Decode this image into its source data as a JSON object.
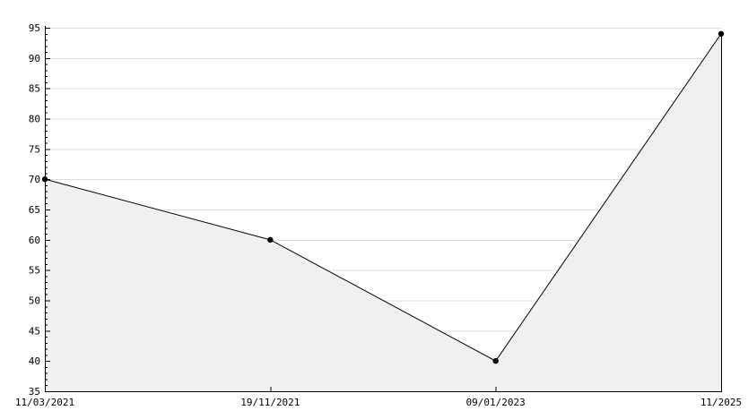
{
  "chart_data": {
    "type": "area",
    "x": [
      "11/03/2021",
      "19/11/2021",
      "09/01/2023",
      "11/2025"
    ],
    "series": [
      {
        "name": "value",
        "values": [
          70,
          60,
          40,
          94
        ]
      }
    ],
    "title": "",
    "xlabel": "",
    "ylabel": "",
    "ylim": [
      35,
      95
    ],
    "y_major_step": 5,
    "y_minor_step": 1,
    "y_tick_labels": [
      "35",
      "40",
      "45",
      "50",
      "55",
      "60",
      "65",
      "70",
      "75",
      "80",
      "85",
      "90",
      "95"
    ],
    "grid": true,
    "legend": "none",
    "marker": "dot",
    "colors": {
      "line": "#000000",
      "marker": "#000000",
      "fill": "#f0f0f0",
      "grid": "#dcdcdc",
      "axis": "#000000",
      "text": "#000000",
      "background": "#ffffff"
    }
  }
}
